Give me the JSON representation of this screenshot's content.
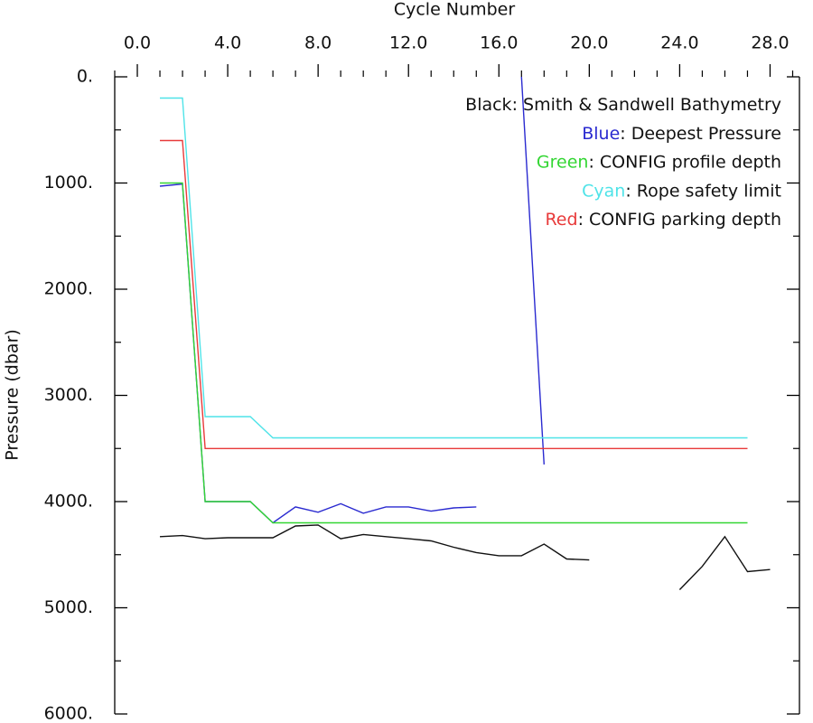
{
  "chart_data": {
    "type": "line",
    "x_label": "Cycle Number",
    "y_label": "Pressure (dbar)",
    "x": [
      1,
      2,
      3,
      4,
      5,
      6,
      7,
      8,
      9,
      10,
      11,
      12,
      13,
      14,
      15,
      16,
      17,
      18,
      19,
      20,
      21,
      22,
      23,
      24,
      25,
      26,
      27,
      28
    ],
    "xlim": [
      -1,
      29.3
    ],
    "xticks": [
      {
        "value": 0,
        "label": "0.0"
      },
      {
        "value": 4,
        "label": "4.0"
      },
      {
        "value": 8,
        "label": "8.0"
      },
      {
        "value": 12,
        "label": "12.0"
      },
      {
        "value": 16,
        "label": "16.0"
      },
      {
        "value": 20,
        "label": "20.0"
      },
      {
        "value": 24,
        "label": "24.0"
      },
      {
        "value": 28,
        "label": "28.0"
      }
    ],
    "xminorticks": [
      -1,
      1,
      2,
      3,
      5,
      6,
      7,
      9,
      10,
      11,
      13,
      14,
      15,
      17,
      18,
      19,
      21,
      22,
      23,
      25,
      26,
      27,
      29
    ],
    "ylim": [
      6000,
      0
    ],
    "yticks": [
      {
        "value": 0,
        "label": "0."
      },
      {
        "value": 1000,
        "label": "1000."
      },
      {
        "value": 2000,
        "label": "2000."
      },
      {
        "value": 3000,
        "label": "3000."
      },
      {
        "value": 4000,
        "label": "4000."
      },
      {
        "value": 5000,
        "label": "5000."
      },
      {
        "value": 6000,
        "label": "6000."
      }
    ],
    "yminorticks": [
      500,
      1500,
      2500,
      3500,
      4500,
      5500
    ],
    "legend_separator": ": ",
    "series": [
      {
        "legend_word": "Black",
        "name": "Smith & Sandwell Bathymetry",
        "color": "#111111",
        "values": [
          4330,
          4320,
          4350,
          4340,
          4340,
          4340,
          4230,
          4220,
          4350,
          4310,
          4330,
          4350,
          4370,
          4430,
          4480,
          4510,
          4510,
          4400,
          4540,
          4550,
          null,
          null,
          null,
          4830,
          4610,
          4330,
          4660,
          4640
        ]
      },
      {
        "legend_word": "Blue",
        "name": "Deepest Pressure",
        "color": "#2a2ad0",
        "values": [
          1030,
          1010,
          4000,
          4000,
          4000,
          4200,
          4050,
          4100,
          4020,
          4110,
          4050,
          4050,
          4090,
          4060,
          4050,
          null,
          0,
          3650,
          null,
          null,
          null,
          null,
          null,
          null,
          null,
          null,
          null,
          null
        ]
      },
      {
        "legend_word": "Green",
        "name": "CONFIG profile depth",
        "color": "#33d633",
        "values": [
          1000,
          1000,
          4000,
          4000,
          4000,
          4200,
          4200,
          4200,
          4200,
          4200,
          4200,
          4200,
          4200,
          4200,
          4200,
          4200,
          4200,
          4200,
          4200,
          4200,
          4200,
          4200,
          4200,
          4200,
          4200,
          4200,
          4200,
          null
        ]
      },
      {
        "legend_word": "Cyan",
        "name": "Rope safety limit",
        "color": "#4fe3e8",
        "values": [
          200,
          200,
          3200,
          3200,
          3200,
          3400,
          3400,
          3400,
          3400,
          3400,
          3400,
          3400,
          3400,
          3400,
          3400,
          3400,
          3400,
          3400,
          3400,
          3400,
          3400,
          3400,
          3400,
          3400,
          3400,
          3400,
          3400,
          null
        ]
      },
      {
        "legend_word": "Red",
        "name": "CONFIG parking depth",
        "color": "#e83a3a",
        "values": [
          600,
          600,
          3500,
          3500,
          3500,
          3500,
          3500,
          3500,
          3500,
          3500,
          3500,
          3500,
          3500,
          3500,
          3500,
          3500,
          3500,
          3500,
          3500,
          3500,
          3500,
          3500,
          3500,
          3500,
          3500,
          3500,
          3500,
          null
        ]
      }
    ],
    "draw_order": [
      0,
      1,
      3,
      4,
      2
    ]
  }
}
